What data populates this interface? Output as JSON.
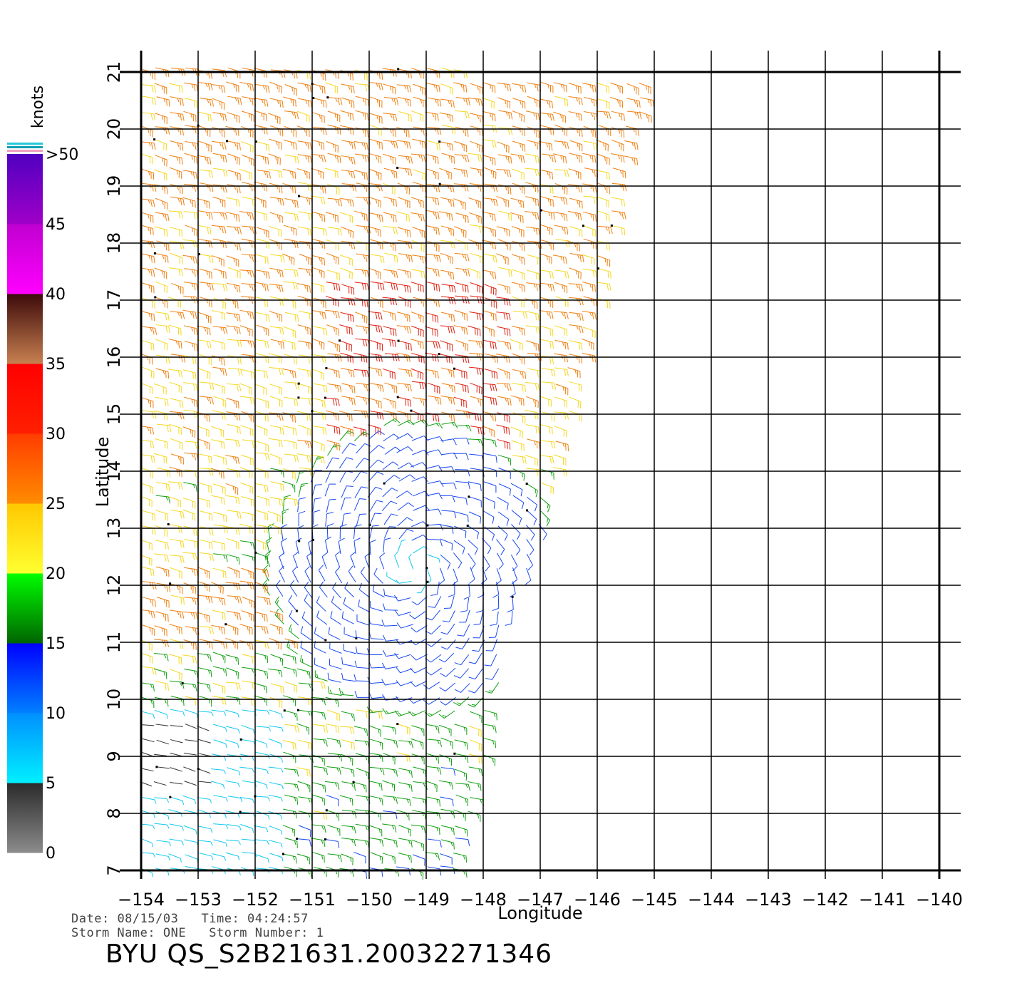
{
  "chart_data": {
    "type": "wind-barb-map",
    "xlabel": "Longitude",
    "ylabel": "Latitude",
    "xlim": [
      -154,
      -140
    ],
    "ylim": [
      7,
      21
    ],
    "x_ticks": [
      "−154",
      "−153",
      "−152",
      "−151",
      "−150",
      "−149",
      "−148",
      "−147",
      "−146",
      "−145",
      "−144",
      "−143",
      "−142",
      "−141",
      "−140"
    ],
    "y_ticks": [
      "7",
      "8",
      "9",
      "10",
      "11",
      "12",
      "13",
      "14",
      "15",
      "16",
      "17",
      "18",
      "19",
      "20",
      "21"
    ],
    "colorbar": {
      "unit": "knots",
      "labels": [
        "0",
        "5",
        "10",
        "15",
        "20",
        "25",
        "30",
        "35",
        "40",
        "45",
        ">50"
      ],
      "bands": [
        {
          "from": 0,
          "to": 5,
          "colors": [
            "#8c8c8c",
            "#2a2a2a"
          ]
        },
        {
          "from": 5,
          "to": 10,
          "colors": [
            "#00f0ff",
            "#0090ff"
          ]
        },
        {
          "from": 10,
          "to": 15,
          "colors": [
            "#0080ff",
            "#0000ff"
          ]
        },
        {
          "from": 15,
          "to": 20,
          "colors": [
            "#006400",
            "#00ff00"
          ]
        },
        {
          "from": 20,
          "to": 25,
          "colors": [
            "#ffff30",
            "#ffc800"
          ]
        },
        {
          "from": 25,
          "to": 30,
          "colors": [
            "#ff8c00",
            "#ff3c00"
          ]
        },
        {
          "from": 30,
          "to": 35,
          "colors": [
            "#ff2000",
            "#ff0000"
          ]
        },
        {
          "from": 35,
          "to": 40,
          "colors": [
            "#c88050",
            "#3c0a0a"
          ]
        },
        {
          "from": 40,
          "to": 45,
          "colors": [
            "#ff00ff",
            "#c000d0"
          ]
        },
        {
          "from": 45,
          "to": 50,
          "colors": [
            "#a000c8",
            "#5000c0"
          ]
        }
      ]
    },
    "storm_center": {
      "lon": -149.2,
      "lat": 12.3
    },
    "swath_east_edge": [
      [
        -145,
        21
      ],
      [
        -145.6,
        19
      ],
      [
        -146,
        17
      ],
      [
        -146.5,
        15
      ],
      [
        -147,
        13
      ],
      [
        -147.6,
        11
      ],
      [
        -148,
        9
      ],
      [
        -148.5,
        7
      ]
    ]
  },
  "info": {
    "date_label": "Date:",
    "date": "08/15/03",
    "time_label": "Time:",
    "time": "04:24:57",
    "storm_name_label": "Storm Name:",
    "storm_name": "ONE",
    "storm_number_label": "Storm Number:",
    "storm_number": "1"
  },
  "title": "BYU  QS_S2B21631.20032271346"
}
